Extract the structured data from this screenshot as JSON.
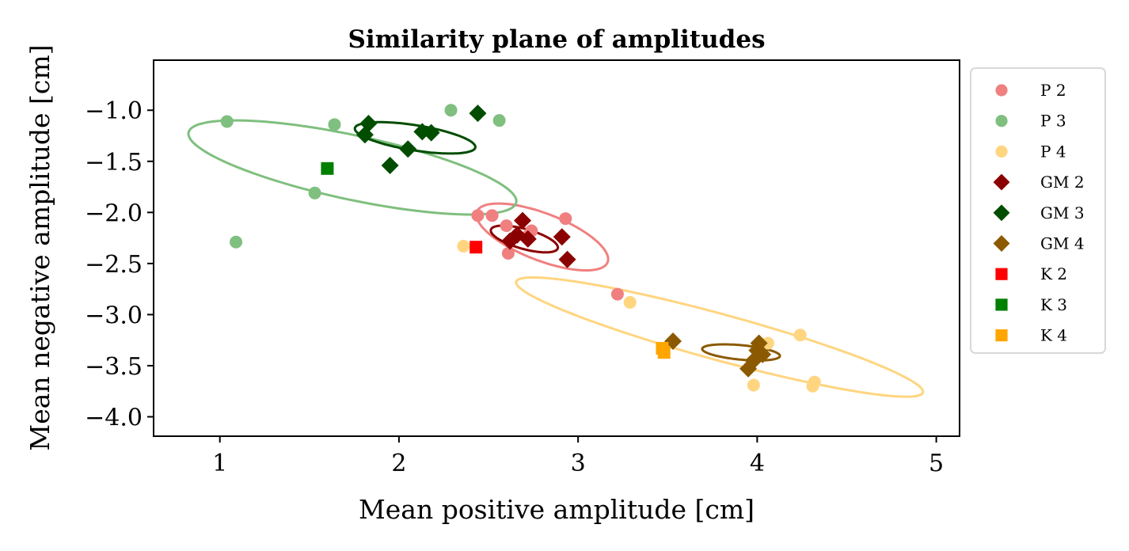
{
  "chart_data": {
    "type": "scatter",
    "title": "Similarity plane of amplitudes",
    "xlabel": "Mean positive amplitude [cm]",
    "ylabel": "Mean negative amplitude [cm]",
    "xlim": [
      0.63,
      5.13
    ],
    "ylim": [
      -4.19,
      -0.51
    ],
    "xticks": [
      1,
      2,
      3,
      4,
      5
    ],
    "yticks": [
      -1.0,
      -1.5,
      -2.0,
      -2.5,
      -3.0,
      -3.5,
      -4.0
    ],
    "xtick_labels": [
      "1",
      "2",
      "3",
      "4",
      "5"
    ],
    "ytick_labels": [
      "−1.0",
      "−1.5",
      "−2.0",
      "−2.5",
      "−3.0",
      "−3.5",
      "−4.0"
    ],
    "grid": false,
    "legend_position": "outside-right",
    "series": [
      {
        "name": "P 2",
        "marker": "circle",
        "color": "#f08080",
        "points": [
          [
            2.44,
            -2.03
          ],
          [
            2.52,
            -2.03
          ],
          [
            2.6,
            -2.13
          ],
          [
            2.74,
            -2.18
          ],
          [
            2.93,
            -2.06
          ],
          [
            2.61,
            -2.4
          ],
          [
            2.72,
            -2.23
          ],
          [
            3.22,
            -2.8
          ]
        ]
      },
      {
        "name": "P 3",
        "marker": "circle",
        "color": "#7fbf7f",
        "points": [
          [
            1.04,
            -1.11
          ],
          [
            1.09,
            -2.29
          ],
          [
            1.64,
            -1.14
          ],
          [
            1.53,
            -1.81
          ],
          [
            2.29,
            -1.0
          ],
          [
            2.56,
            -1.1
          ]
        ]
      },
      {
        "name": "P 4",
        "marker": "circle",
        "color": "#ffd580",
        "points": [
          [
            2.36,
            -2.33
          ],
          [
            3.29,
            -2.88
          ],
          [
            4.24,
            -3.2
          ],
          [
            4.06,
            -3.28
          ],
          [
            3.98,
            -3.69
          ],
          [
            4.32,
            -3.66
          ],
          [
            4.31,
            -3.7
          ]
        ]
      },
      {
        "name": "GM 2",
        "marker": "diamond",
        "color": "#8b0000",
        "points": [
          [
            2.69,
            -2.08
          ],
          [
            2.66,
            -2.22
          ],
          [
            2.62,
            -2.28
          ],
          [
            2.72,
            -2.26
          ],
          [
            2.91,
            -2.24
          ],
          [
            2.94,
            -2.46
          ]
        ]
      },
      {
        "name": "GM 3",
        "marker": "diamond",
        "color": "#004d00",
        "points": [
          [
            1.83,
            -1.13
          ],
          [
            1.81,
            -1.24
          ],
          [
            2.44,
            -1.03
          ],
          [
            2.13,
            -1.21
          ],
          [
            2.18,
            -1.22
          ],
          [
            2.05,
            -1.38
          ],
          [
            1.95,
            -1.54
          ]
        ]
      },
      {
        "name": "GM 4",
        "marker": "diamond",
        "color": "#8b5a00",
        "points": [
          [
            3.53,
            -3.26
          ],
          [
            4.01,
            -3.28
          ],
          [
            4.03,
            -3.39
          ],
          [
            3.98,
            -3.45
          ],
          [
            3.95,
            -3.53
          ],
          [
            4.0,
            -3.35
          ]
        ]
      },
      {
        "name": "K 2",
        "marker": "square",
        "color": "#ff0000",
        "points": [
          [
            2.43,
            -2.34
          ]
        ]
      },
      {
        "name": "K 3",
        "marker": "square",
        "color": "#008000",
        "points": [
          [
            1.6,
            -1.57
          ]
        ]
      },
      {
        "name": "K 4",
        "marker": "square",
        "color": "#ffa500",
        "points": [
          [
            3.47,
            -3.33
          ],
          [
            3.48,
            -3.37
          ]
        ]
      }
    ],
    "ellipses": [
      {
        "series": "P 2",
        "color": "#f08080",
        "cx": 2.8,
        "cy": -2.24,
        "rx": 0.45,
        "ry": 0.2,
        "angle_deg": -40
      },
      {
        "series": "P 3",
        "color": "#7fbf7f",
        "cx": 1.74,
        "cy": -1.56,
        "rx": 0.98,
        "ry": 0.3,
        "angle_deg": -22
      },
      {
        "series": "P 4",
        "color": "#ffd580",
        "cx": 3.79,
        "cy": -3.22,
        "rx": 1.26,
        "ry": 0.21,
        "angle_deg": -26
      },
      {
        "series": "GM 2",
        "color": "#8b0000",
        "cx": 2.7,
        "cy": -2.26,
        "rx": 0.21,
        "ry": 0.09,
        "angle_deg": -30
      },
      {
        "series": "GM 3",
        "color": "#004d00",
        "cx": 2.09,
        "cy": -1.27,
        "rx": 0.35,
        "ry": 0.12,
        "angle_deg": -17
      },
      {
        "series": "GM 4",
        "color": "#8b5a00",
        "cx": 3.91,
        "cy": -3.37,
        "rx": 0.22,
        "ry": 0.07,
        "angle_deg": -10
      }
    ]
  }
}
